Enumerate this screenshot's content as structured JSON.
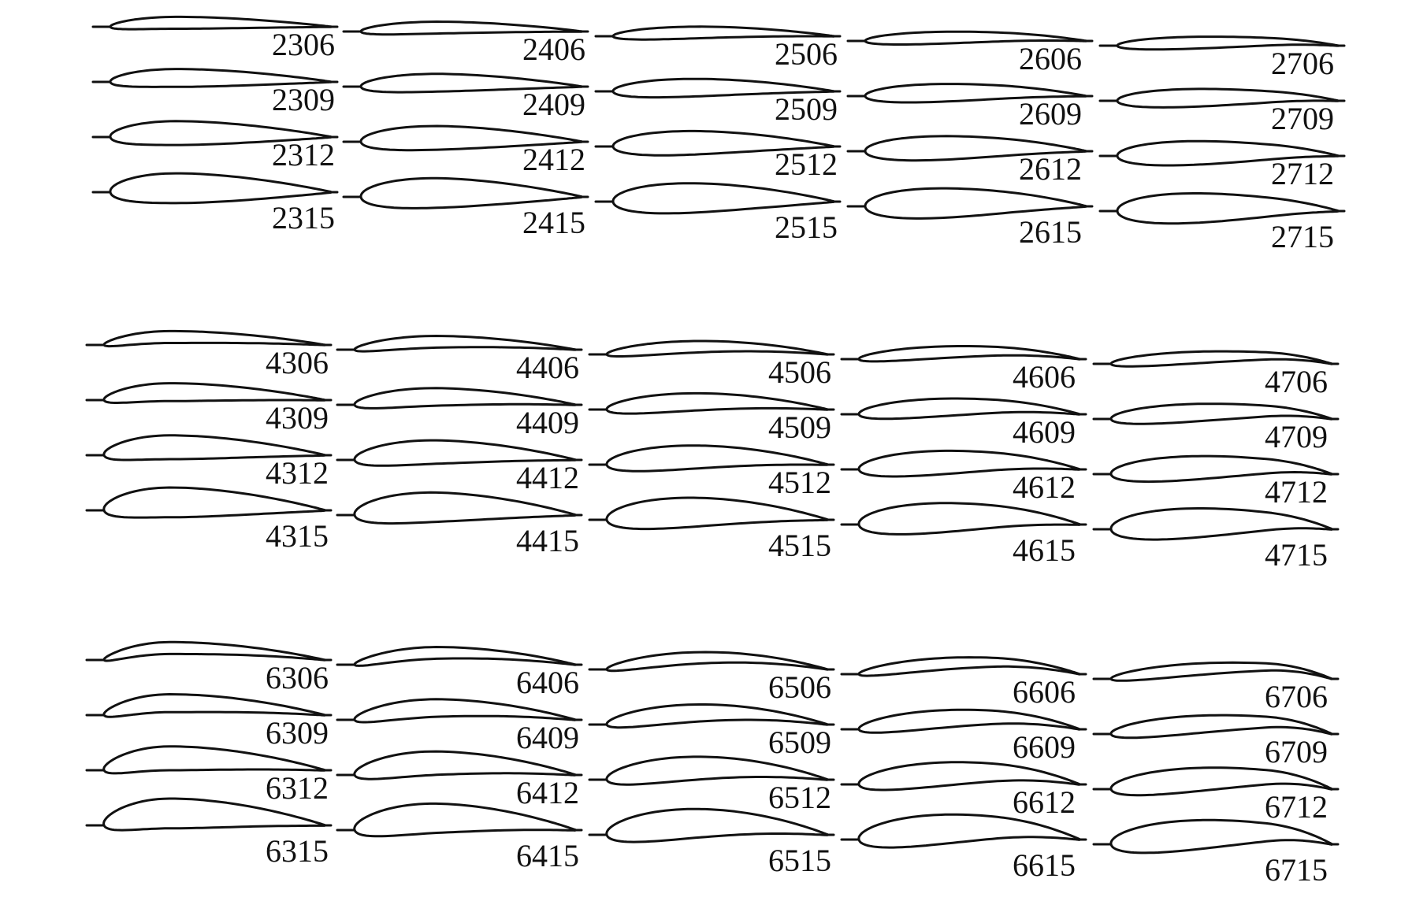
{
  "figure": {
    "colors": {
      "ink": "#111111",
      "background": "#ffffff"
    },
    "blocks": [
      {
        "camber": 2,
        "rows": [
          {
            "thickness": 6,
            "labels": [
              "2306",
              "2406",
              "2506",
              "2606",
              "2706"
            ]
          },
          {
            "thickness": 9,
            "labels": [
              "2309",
              "2409",
              "2509",
              "2609",
              "2709"
            ]
          },
          {
            "thickness": 12,
            "labels": [
              "2312",
              "2412",
              "2512",
              "2612",
              "2712"
            ]
          },
          {
            "thickness": 15,
            "labels": [
              "2315",
              "2415",
              "2515",
              "2615",
              "2715"
            ]
          }
        ]
      },
      {
        "camber": 4,
        "rows": [
          {
            "thickness": 6,
            "labels": [
              "4306",
              "4406",
              "4506",
              "4606",
              "4706"
            ]
          },
          {
            "thickness": 9,
            "labels": [
              "4309",
              "4409",
              "4509",
              "4609",
              "4709"
            ]
          },
          {
            "thickness": 12,
            "labels": [
              "4312",
              "4412",
              "4512",
              "4612",
              "4712"
            ]
          },
          {
            "thickness": 15,
            "labels": [
              "4315",
              "4415",
              "4515",
              "4615",
              "4715"
            ]
          }
        ]
      },
      {
        "camber": 6,
        "rows": [
          {
            "thickness": 6,
            "labels": [
              "6306",
              "6406",
              "6506",
              "6606",
              "6706"
            ]
          },
          {
            "thickness": 9,
            "labels": [
              "6309",
              "6409",
              "6509",
              "6609",
              "6709"
            ]
          },
          {
            "thickness": 12,
            "labels": [
              "6312",
              "6412",
              "6512",
              "6612",
              "6712"
            ]
          },
          {
            "thickness": 15,
            "labels": [
              "6315",
              "6415",
              "6515",
              "6615",
              "6715"
            ]
          }
        ]
      }
    ]
  }
}
